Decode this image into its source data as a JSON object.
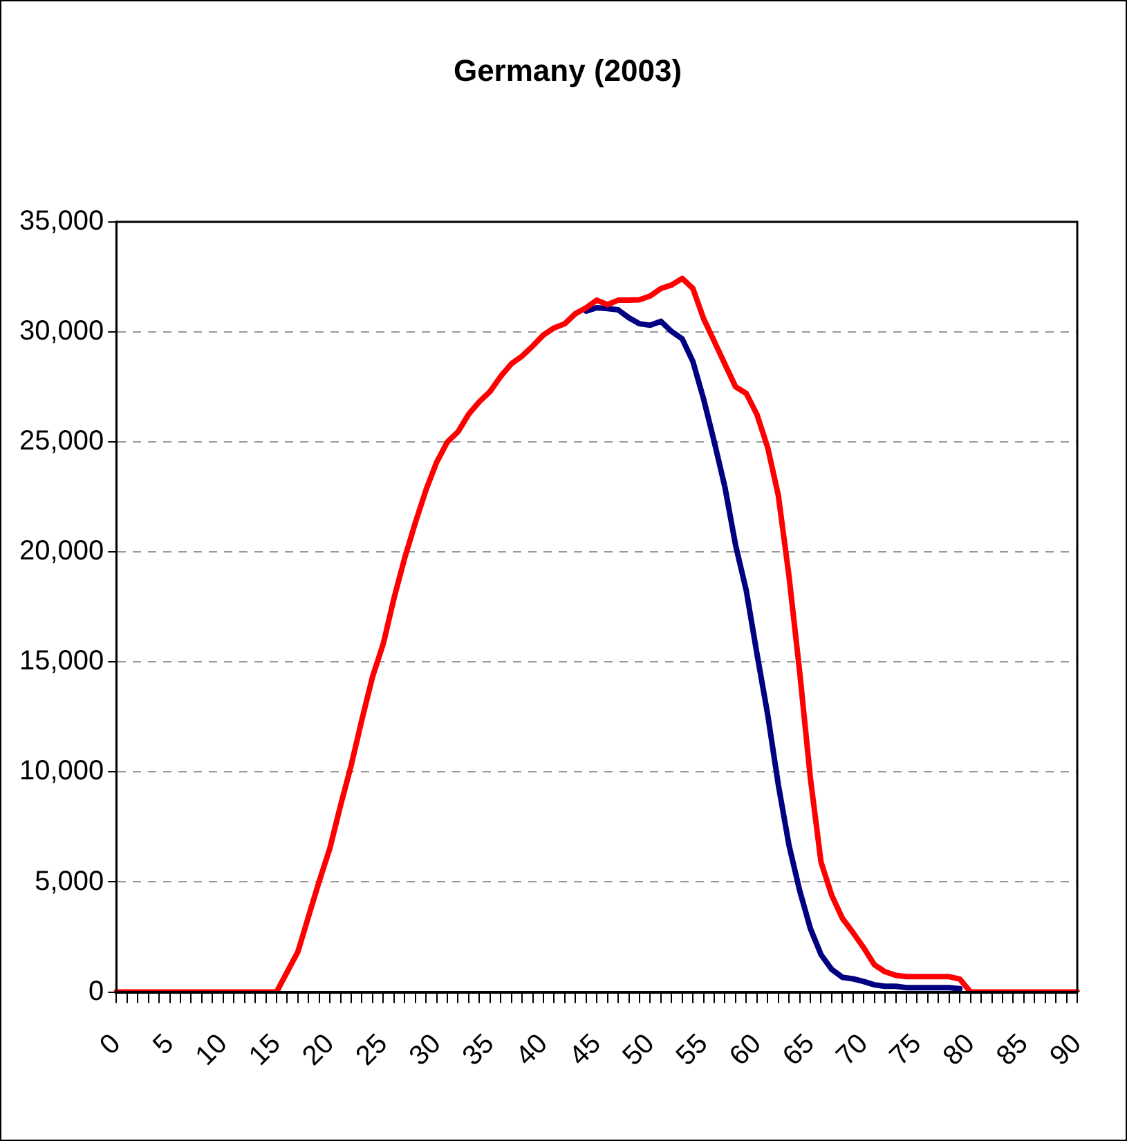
{
  "chart_data": {
    "type": "line",
    "title": "Germany (2003)",
    "categories": [
      "0",
      null,
      null,
      null,
      null,
      "5",
      null,
      null,
      null,
      null,
      "10",
      null,
      null,
      null,
      null,
      "15",
      null,
      null,
      null,
      null,
      "20",
      null,
      null,
      null,
      null,
      "25",
      null,
      null,
      null,
      null,
      "30",
      null,
      null,
      null,
      null,
      "35",
      null,
      null,
      null,
      null,
      "40",
      null,
      null,
      null,
      null,
      "45",
      null,
      null,
      null,
      null,
      "50",
      null,
      null,
      null,
      null,
      "55",
      null,
      null,
      null,
      null,
      "60",
      null,
      null,
      null,
      null,
      "65",
      null,
      null,
      null,
      null,
      "70",
      null,
      null,
      null,
      null,
      "75",
      null,
      null,
      null,
      null,
      "80",
      null,
      null,
      null,
      null,
      "85",
      null,
      null,
      null,
      null,
      "90"
    ],
    "series": [
      {
        "color": "#000080",
        "values": [
          null,
          null,
          null,
          null,
          null,
          null,
          null,
          null,
          null,
          null,
          null,
          null,
          null,
          null,
          null,
          null,
          null,
          null,
          null,
          null,
          null,
          null,
          null,
          null,
          null,
          null,
          null,
          null,
          null,
          null,
          null,
          null,
          null,
          null,
          null,
          null,
          null,
          null,
          null,
          null,
          null,
          null,
          null,
          null,
          30940,
          31100,
          31060,
          31000,
          30640,
          30370,
          30300,
          30480,
          30020,
          29680,
          28650,
          26950,
          25000,
          22940,
          20300,
          18240,
          15370,
          12620,
          9420,
          6670,
          4610,
          2890,
          1700,
          1030,
          670,
          600,
          480,
          330,
          260,
          260,
          200,
          200,
          200,
          200,
          200,
          150,
          null,
          null,
          null,
          null,
          null,
          null,
          null,
          null,
          null,
          null,
          null
        ]
      },
      {
        "color": "#ff0000",
        "values": [
          0,
          0,
          0,
          0,
          0,
          0,
          0,
          0,
          0,
          0,
          0,
          0,
          0,
          0,
          0,
          0,
          920,
          1830,
          3440,
          5040,
          6540,
          8490,
          10320,
          12390,
          14340,
          15830,
          17890,
          19720,
          21330,
          22820,
          24080,
          25000,
          25460,
          26260,
          26830,
          27290,
          27980,
          28550,
          28900,
          29360,
          29860,
          30180,
          30370,
          30830,
          31100,
          31440,
          31240,
          31440,
          31440,
          31460,
          31630,
          31970,
          32130,
          32430,
          31970,
          30600,
          29570,
          28530,
          27500,
          27200,
          26240,
          24750,
          22570,
          18900,
          14550,
          9730,
          5900,
          4400,
          3350,
          2700,
          2010,
          1240,
          920,
          760,
          700,
          700,
          700,
          700,
          700,
          590,
          0,
          0,
          0,
          0,
          0,
          0,
          0,
          0,
          0,
          0,
          0
        ]
      }
    ],
    "ylim": [
      0,
      35000
    ],
    "yticks": [
      0,
      {
        "value": 5000,
        "label": "5,000"
      },
      {
        "value": 10000,
        "label": "10,000"
      },
      {
        "value": 15000,
        "label": "15,000"
      },
      {
        "value": 20000,
        "label": "20,000"
      },
      {
        "value": 25000,
        "label": "25,000"
      },
      {
        "value": 30000,
        "label": "30,000"
      },
      {
        "value": 35000,
        "label": "35,000"
      }
    ],
    "grid": "y",
    "marker": "none"
  }
}
